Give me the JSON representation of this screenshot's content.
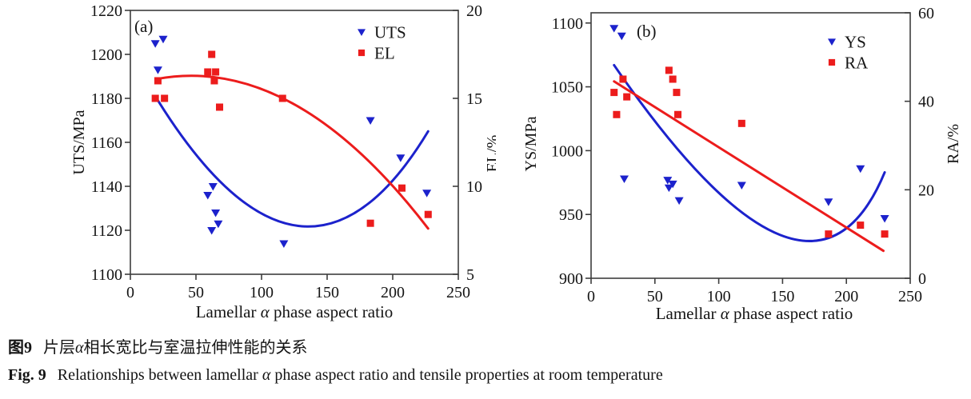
{
  "figure": {
    "caption_zh": {
      "label": "图9",
      "text": "片层α相长宽比与室温拉伸性能的关系"
    },
    "caption_en": {
      "label": "Fig. 9",
      "text": "Relationships between lamellar α phase aspect ratio and tensile properties at room temperature"
    }
  },
  "colors": {
    "blue": "#1c22cc",
    "red": "#ec1c1c",
    "frame": "#3d3d3d",
    "text": "#141414",
    "left_title_a": "#8a8a8a"
  },
  "chart_data": [
    {
      "type": "scatter",
      "panel": "(a)",
      "xlabel": "Lamellar α phase aspect ratio",
      "x_range": [
        0,
        250
      ],
      "x_ticks": [
        0,
        50,
        100,
        150,
        200,
        250
      ],
      "left_axis": {
        "label": "UTS/MPa",
        "range": [
          1100,
          1220
        ],
        "ticks": [
          1100,
          1120,
          1140,
          1160,
          1180,
          1200,
          1220
        ],
        "label_color": "#8a8a8a"
      },
      "right_axis": {
        "label": "EL/%",
        "range": [
          5,
          20
        ],
        "ticks": [
          5,
          10,
          15,
          20
        ],
        "label_color": "#141414"
      },
      "grid": false,
      "legend_position": "top-right-inside",
      "series": [
        {
          "name": "UTS",
          "axis": "left",
          "marker": "triangle-down",
          "color": "#1c22cc",
          "points": [
            [
              19,
              1205
            ],
            [
              25,
              1207
            ],
            [
              21,
              1193
            ],
            [
              59,
              1136
            ],
            [
              63,
              1140
            ],
            [
              65,
              1128
            ],
            [
              67,
              1123
            ],
            [
              62,
              1120
            ],
            [
              117,
              1114
            ],
            [
              183,
              1170
            ],
            [
              206,
              1153
            ],
            [
              226,
              1137
            ]
          ]
        },
        {
          "name": "EL",
          "axis": "right",
          "marker": "square",
          "color": "#ec1c1c",
          "points": [
            [
              21,
              16.0
            ],
            [
              19,
              15.0
            ],
            [
              26,
              15.0
            ],
            [
              62,
              17.5
            ],
            [
              59,
              16.5
            ],
            [
              65,
              16.5
            ],
            [
              64,
              16.0
            ],
            [
              68,
              14.5
            ],
            [
              116,
              15.0
            ],
            [
              183,
              7.9
            ],
            [
              207,
              9.9
            ],
            [
              227,
              8.4
            ]
          ]
        }
      ],
      "trends": [
        {
          "series": "UTS",
          "axis": "left",
          "color": "#1c22cc",
          "shape": "parabola",
          "start": [
            20,
            1180
          ],
          "mid": [
            128,
            1122
          ],
          "end": [
            227,
            1165
          ]
        },
        {
          "series": "EL",
          "axis": "right",
          "color": "#ec1c1c",
          "shape": "arc",
          "start": [
            20,
            16.1
          ],
          "mid": [
            124,
            14.7
          ],
          "end": [
            227,
            7.6
          ]
        }
      ]
    },
    {
      "type": "scatter",
      "panel": "(b)",
      "xlabel": "Lamellar α  phase aspect ratio",
      "x_range": [
        0,
        250
      ],
      "x_ticks": [
        0,
        50,
        100,
        150,
        200,
        250
      ],
      "left_axis": {
        "label": "YS/MPa",
        "range": [
          900,
          1108
        ],
        "ticks": [
          900,
          950,
          1000,
          1050,
          1100
        ],
        "label_color": "#141414"
      },
      "right_axis": {
        "label": "RA/%",
        "range": [
          0,
          60
        ],
        "ticks": [
          0,
          20,
          40,
          60
        ],
        "label_color": "#141414"
      },
      "grid": false,
      "legend_position": "top-right-inside",
      "series": [
        {
          "name": "YS",
          "axis": "left",
          "marker": "triangle-down",
          "color": "#1c22cc",
          "points": [
            [
              18,
              1096
            ],
            [
              24,
              1090
            ],
            [
              26,
              978
            ],
            [
              60,
              977
            ],
            [
              64,
              974
            ],
            [
              61,
              971
            ],
            [
              69,
              961
            ],
            [
              118,
              973
            ],
            [
              186,
              960
            ],
            [
              211,
              986
            ],
            [
              230,
              947
            ]
          ]
        },
        {
          "name": "RA",
          "axis": "right",
          "marker": "square",
          "color": "#ec1c1c",
          "points": [
            [
              25,
              45
            ],
            [
              18,
              42
            ],
            [
              28,
              41
            ],
            [
              20,
              37
            ],
            [
              61,
              47
            ],
            [
              64,
              45
            ],
            [
              67,
              42
            ],
            [
              68,
              37
            ],
            [
              118,
              35
            ],
            [
              186,
              10
            ],
            [
              211,
              12
            ],
            [
              230,
              10
            ]
          ]
        }
      ],
      "trends": [
        {
          "series": "YS",
          "axis": "left",
          "color": "#1c22cc",
          "shape": "parabola",
          "start": [
            18,
            1067
          ],
          "mid": [
            148,
            934
          ],
          "end": [
            230,
            983
          ]
        },
        {
          "series": "RA",
          "axis": "right",
          "color": "#ec1c1c",
          "shape": "line",
          "start": [
            18,
            44.5
          ],
          "mid": [
            123.5,
            25.35
          ],
          "end": [
            229,
            6.2
          ]
        }
      ]
    }
  ]
}
